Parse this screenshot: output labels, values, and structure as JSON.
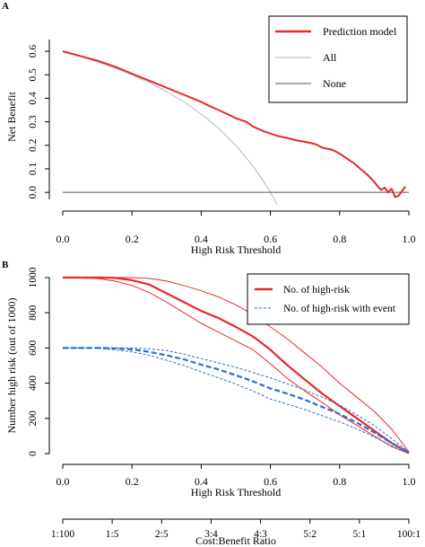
{
  "chart_data": [
    {
      "panel_label": "A",
      "type": "line",
      "title": "",
      "xlabel": "High Risk Threshold",
      "ylabel": "Net Benefit",
      "xlim": [
        0,
        1
      ],
      "ylim": [
        -0.03,
        0.65
      ],
      "x_ticks": [
        "0.0",
        "0.2",
        "0.4",
        "0.6",
        "0.8",
        "1.0"
      ],
      "y_ticks": [
        "0.0",
        "0.1",
        "0.2",
        "0.3",
        "0.4",
        "0.5",
        "0.6"
      ],
      "legend_position": "top-right",
      "series": [
        {
          "name": "Prediction model",
          "color": "#e8282b",
          "x": [
            0.0,
            0.05,
            0.1,
            0.15,
            0.2,
            0.25,
            0.3,
            0.35,
            0.4,
            0.42,
            0.45,
            0.48,
            0.5,
            0.53,
            0.55,
            0.58,
            0.6,
            0.62,
            0.65,
            0.68,
            0.7,
            0.73,
            0.75,
            0.78,
            0.8,
            0.82,
            0.84,
            0.86,
            0.88,
            0.9,
            0.91,
            0.92,
            0.93,
            0.94,
            0.95,
            0.96,
            0.97,
            0.98,
            0.99
          ],
          "y": [
            0.6,
            0.58,
            0.56,
            0.535,
            0.505,
            0.475,
            0.445,
            0.415,
            0.385,
            0.37,
            0.35,
            0.33,
            0.315,
            0.3,
            0.28,
            0.26,
            0.25,
            0.24,
            0.23,
            0.22,
            0.215,
            0.205,
            0.19,
            0.18,
            0.165,
            0.145,
            0.125,
            0.1,
            0.075,
            0.045,
            0.025,
            0.01,
            0.02,
            0.0,
            0.015,
            -0.02,
            -0.015,
            0.005,
            0.025
          ]
        },
        {
          "name": "All",
          "color": "#b5b5b5",
          "x": [
            0.0,
            0.05,
            0.1,
            0.15,
            0.2,
            0.25,
            0.3,
            0.35,
            0.4,
            0.45,
            0.5,
            0.55,
            0.58,
            0.6,
            0.62
          ],
          "y": [
            0.6,
            0.5789,
            0.5556,
            0.5294,
            0.5,
            0.4667,
            0.4286,
            0.3846,
            0.3333,
            0.2727,
            0.2,
            0.1111,
            0.0476,
            0.0,
            -0.0526
          ]
        },
        {
          "name": "None",
          "color": "#555555",
          "x": [
            0.0,
            1.0
          ],
          "y": [
            0.0,
            0.0
          ]
        }
      ]
    },
    {
      "panel_label": "B",
      "type": "line",
      "title": "",
      "xlabel": "High Risk Threshold",
      "ylabel": "Number high risk (out of 1000)",
      "x2label": "Cost:Benefit Ratio",
      "xlim": [
        0,
        1
      ],
      "ylim": [
        0,
        1000
      ],
      "x_ticks": [
        "0.0",
        "0.2",
        "0.4",
        "0.6",
        "0.8",
        "1.0"
      ],
      "x2_ticks": [
        "1:100",
        "1:5",
        "2:5",
        "3:4",
        "4:3",
        "5:2",
        "5:1",
        "100:1"
      ],
      "y_ticks": [
        "0",
        "200",
        "400",
        "600",
        "800",
        "1000"
      ],
      "legend_position": "top-right",
      "series": [
        {
          "name": "No. of high-risk",
          "color": "#e8282b",
          "style": "solid",
          "x": [
            0.0,
            0.1,
            0.15,
            0.2,
            0.25,
            0.3,
            0.35,
            0.4,
            0.45,
            0.5,
            0.55,
            0.6,
            0.65,
            0.7,
            0.75,
            0.8,
            0.85,
            0.9,
            0.95,
            1.0
          ],
          "y": [
            1000,
            1000,
            998,
            985,
            960,
            910,
            860,
            810,
            770,
            720,
            665,
            590,
            500,
            420,
            340,
            270,
            200,
            130,
            60,
            5
          ],
          "ci_upper": [
            1000,
            1000,
            1000,
            1000,
            995,
            980,
            955,
            925,
            890,
            845,
            790,
            720,
            650,
            570,
            490,
            400,
            320,
            240,
            140,
            10
          ],
          "ci_lower": [
            1000,
            995,
            980,
            955,
            915,
            860,
            800,
            740,
            690,
            640,
            590,
            510,
            425,
            355,
            290,
            220,
            160,
            100,
            40,
            0
          ]
        },
        {
          "name": "No. of high-risk with event",
          "color": "#2f6fce",
          "style": "dashed",
          "x": [
            0.0,
            0.1,
            0.15,
            0.2,
            0.25,
            0.3,
            0.35,
            0.4,
            0.45,
            0.5,
            0.55,
            0.6,
            0.65,
            0.7,
            0.75,
            0.8,
            0.85,
            0.9,
            0.95,
            1.0
          ],
          "y": [
            600,
            600,
            598,
            592,
            578,
            558,
            535,
            505,
            478,
            445,
            410,
            370,
            340,
            305,
            265,
            225,
            175,
            120,
            60,
            5
          ],
          "ci_upper": [
            600,
            600,
            600,
            600,
            595,
            585,
            565,
            540,
            515,
            490,
            460,
            430,
            395,
            360,
            320,
            275,
            220,
            160,
            85,
            10
          ],
          "ci_lower": [
            600,
            598,
            590,
            578,
            558,
            530,
            500,
            465,
            430,
            395,
            355,
            310,
            280,
            250,
            215,
            180,
            140,
            95,
            45,
            0
          ]
        }
      ]
    }
  ]
}
